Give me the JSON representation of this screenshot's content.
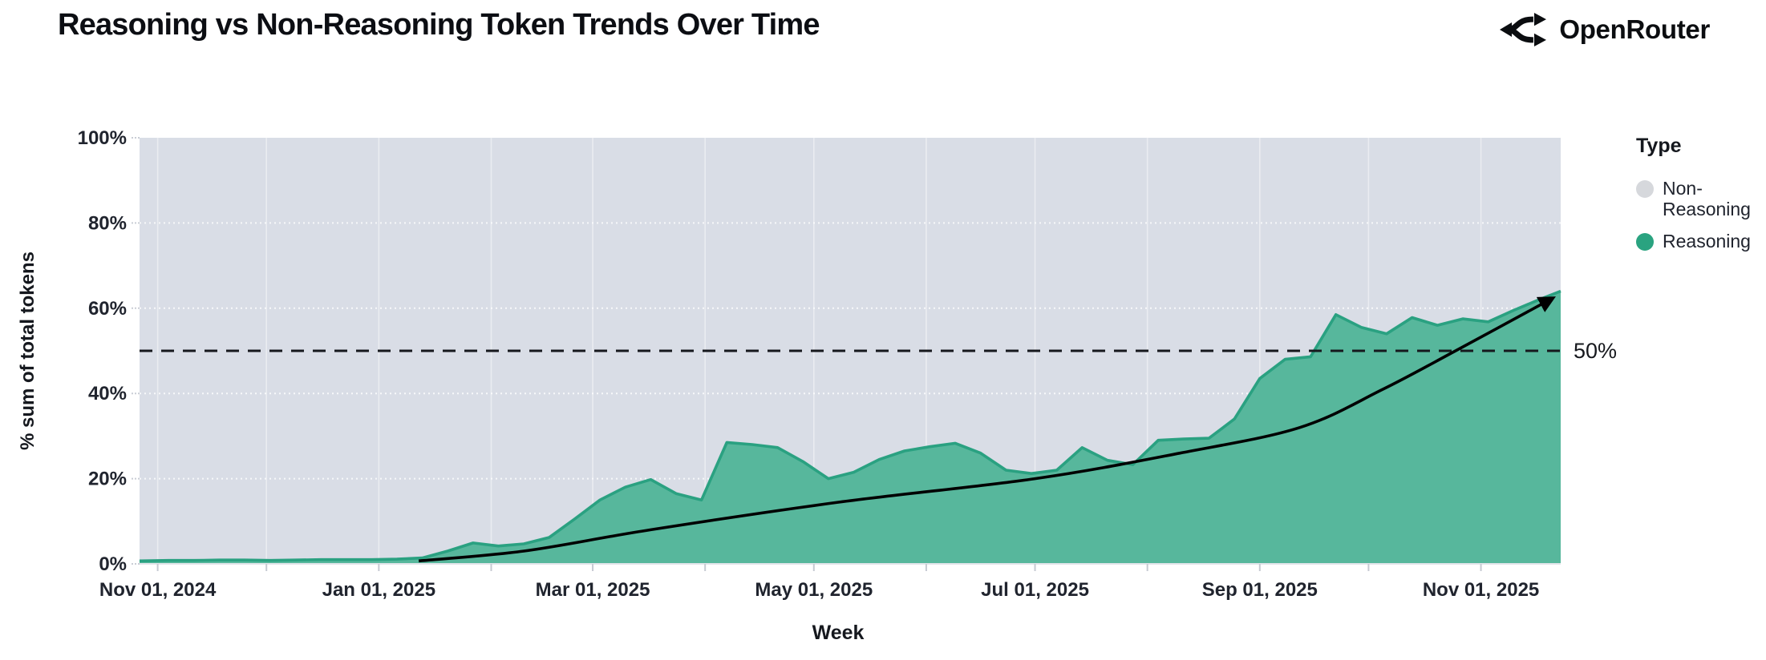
{
  "header": {
    "title": "Reasoning vs Non-Reasoning Token Trends Over Time",
    "brand": "OpenRouter"
  },
  "colors": {
    "plot_background_nonreasoning": "#d9dde6",
    "reasoning_fill": "#57b79c",
    "reasoning_stroke": "#2aa181",
    "legend_gray_dot": "#d6d8dc",
    "legend_green_dot": "#2aa380",
    "gridline": "#ffffff",
    "tick_text": "#20242e",
    "trend_line": "#000000",
    "reference_line": "#16181d"
  },
  "legend": {
    "title": "Type",
    "items": [
      {
        "label": "Non-Reasoning",
        "color": "#d6d8dc"
      },
      {
        "label": "Reasoning",
        "color": "#2aa380"
      }
    ]
  },
  "chart_data": {
    "type": "area",
    "stacked": "100%",
    "title": "Reasoning vs Non-Reasoning Token Trends Over Time",
    "xlabel": "Week",
    "ylabel": "% sum of total tokens",
    "ylim": [
      0,
      100
    ],
    "grid": "on",
    "legend_position": "right",
    "x_domain": [
      "2024-10-27",
      "2025-11-23"
    ],
    "x_ticks": [
      {
        "date": "2024-11-01",
        "label": "Nov 01, 2024"
      },
      {
        "date": "2025-01-01",
        "label": "Jan 01, 2025"
      },
      {
        "date": "2025-03-01",
        "label": "Mar 01, 2025"
      },
      {
        "date": "2025-05-01",
        "label": "May 01, 2025"
      },
      {
        "date": "2025-07-01",
        "label": "Jul 01, 2025"
      },
      {
        "date": "2025-09-01",
        "label": "Sep 01, 2025"
      },
      {
        "date": "2025-11-01",
        "label": "Nov 01, 2025"
      }
    ],
    "month_gridlines": [
      "2024-11-01",
      "2024-12-01",
      "2025-01-01",
      "2025-02-01",
      "2025-03-01",
      "2025-04-01",
      "2025-05-01",
      "2025-06-01",
      "2025-07-01",
      "2025-08-01",
      "2025-09-01",
      "2025-10-01",
      "2025-11-01"
    ],
    "y_ticks": [
      {
        "v": 0,
        "label": "0%"
      },
      {
        "v": 20,
        "label": "20%"
      },
      {
        "v": 40,
        "label": "40%"
      },
      {
        "v": 60,
        "label": "60%"
      },
      {
        "v": 80,
        "label": "80%"
      },
      {
        "v": 100,
        "label": "100%"
      }
    ],
    "weeks": [
      "2024-10-27",
      "2024-11-04",
      "2024-11-11",
      "2024-11-18",
      "2024-11-25",
      "2024-12-02",
      "2024-12-09",
      "2024-12-16",
      "2024-12-23",
      "2024-12-30",
      "2025-01-06",
      "2025-01-13",
      "2025-01-20",
      "2025-01-27",
      "2025-02-03",
      "2025-02-10",
      "2025-02-17",
      "2025-02-24",
      "2025-03-03",
      "2025-03-10",
      "2025-03-17",
      "2025-03-24",
      "2025-03-31",
      "2025-04-07",
      "2025-04-14",
      "2025-04-21",
      "2025-04-28",
      "2025-05-05",
      "2025-05-12",
      "2025-05-19",
      "2025-05-26",
      "2025-06-02",
      "2025-06-09",
      "2025-06-16",
      "2025-06-23",
      "2025-06-30",
      "2025-07-07",
      "2025-07-14",
      "2025-07-21",
      "2025-07-28",
      "2025-08-04",
      "2025-08-11",
      "2025-08-18",
      "2025-08-25",
      "2025-09-01",
      "2025-09-08",
      "2025-09-15",
      "2025-09-22",
      "2025-09-29",
      "2025-10-06",
      "2025-10-13",
      "2025-10-20",
      "2025-10-27",
      "2025-11-03",
      "2025-11-10",
      "2025-11-17",
      "2025-11-23"
    ],
    "series": [
      {
        "name": "Non-Reasoning",
        "color": "#d9dde6",
        "note": "complement of Reasoning series to 100%"
      },
      {
        "name": "Reasoning",
        "color": "#57b79c",
        "stroke": "#2aa181",
        "values": [
          0.7,
          0.8,
          0.8,
          0.9,
          0.9,
          0.8,
          0.9,
          1.0,
          1.0,
          1.0,
          1.1,
          1.4,
          3.0,
          4.9,
          4.2,
          4.7,
          6.2,
          10.5,
          15.0,
          18.0,
          19.8,
          16.5,
          15.0,
          28.5,
          28.0,
          27.3,
          24.0,
          20.0,
          21.5,
          24.5,
          26.5,
          27.5,
          28.3,
          26.0,
          22.0,
          21.2,
          22.0,
          27.3,
          24.3,
          23.3,
          29.0,
          29.3,
          29.5,
          34.0,
          43.5,
          48.0,
          48.6,
          58.5,
          55.5,
          54.0,
          57.8,
          56.0,
          57.5,
          56.8,
          59.5,
          62.0,
          64.0
        ]
      }
    ],
    "reference_line": {
      "value": 50,
      "label": "50%",
      "style": "dashed"
    },
    "trend_line": {
      "arrow": true,
      "color": "#000000",
      "points": [
        [
          "2025-01-12",
          0.7
        ],
        [
          "2025-02-10",
          3.0
        ],
        [
          "2025-03-17",
          8.0
        ],
        [
          "2025-05-08",
          14.5
        ],
        [
          "2025-07-01",
          20.0
        ],
        [
          "2025-08-10",
          26.0
        ],
        [
          "2025-09-12",
          32.0
        ],
        [
          "2025-10-05",
          41.0
        ],
        [
          "2025-10-25",
          50.0
        ],
        [
          "2025-11-20",
          62.0
        ]
      ]
    }
  }
}
